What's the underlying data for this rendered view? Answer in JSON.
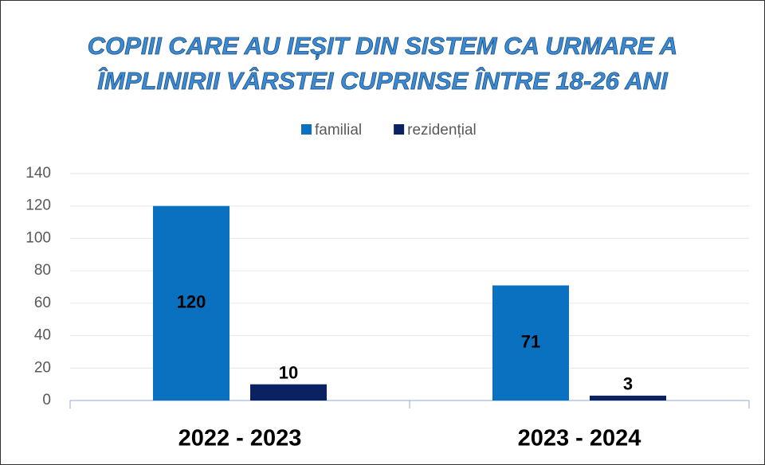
{
  "chart_data": {
    "type": "bar",
    "title": [
      "COPIII CARE AU IEȘIT DIN SISTEM CA URMARE A",
      "ÎMPLINIRII VÂRSTEI CUPRINSE ÎNTRE 18-26 ANI"
    ],
    "categories": [
      "2022 - 2023",
      "2023 - 2024"
    ],
    "series": [
      {
        "name": "familial",
        "color": "#0a70c0",
        "values": [
          120,
          71
        ]
      },
      {
        "name": "rezidențial",
        "color": "#0a2262",
        "values": [
          10,
          3
        ]
      }
    ],
    "ylim": [
      0,
      140
    ],
    "yticks": [
      0,
      20,
      40,
      60,
      80,
      100,
      120,
      140
    ],
    "grid": true,
    "legend": "top"
  }
}
